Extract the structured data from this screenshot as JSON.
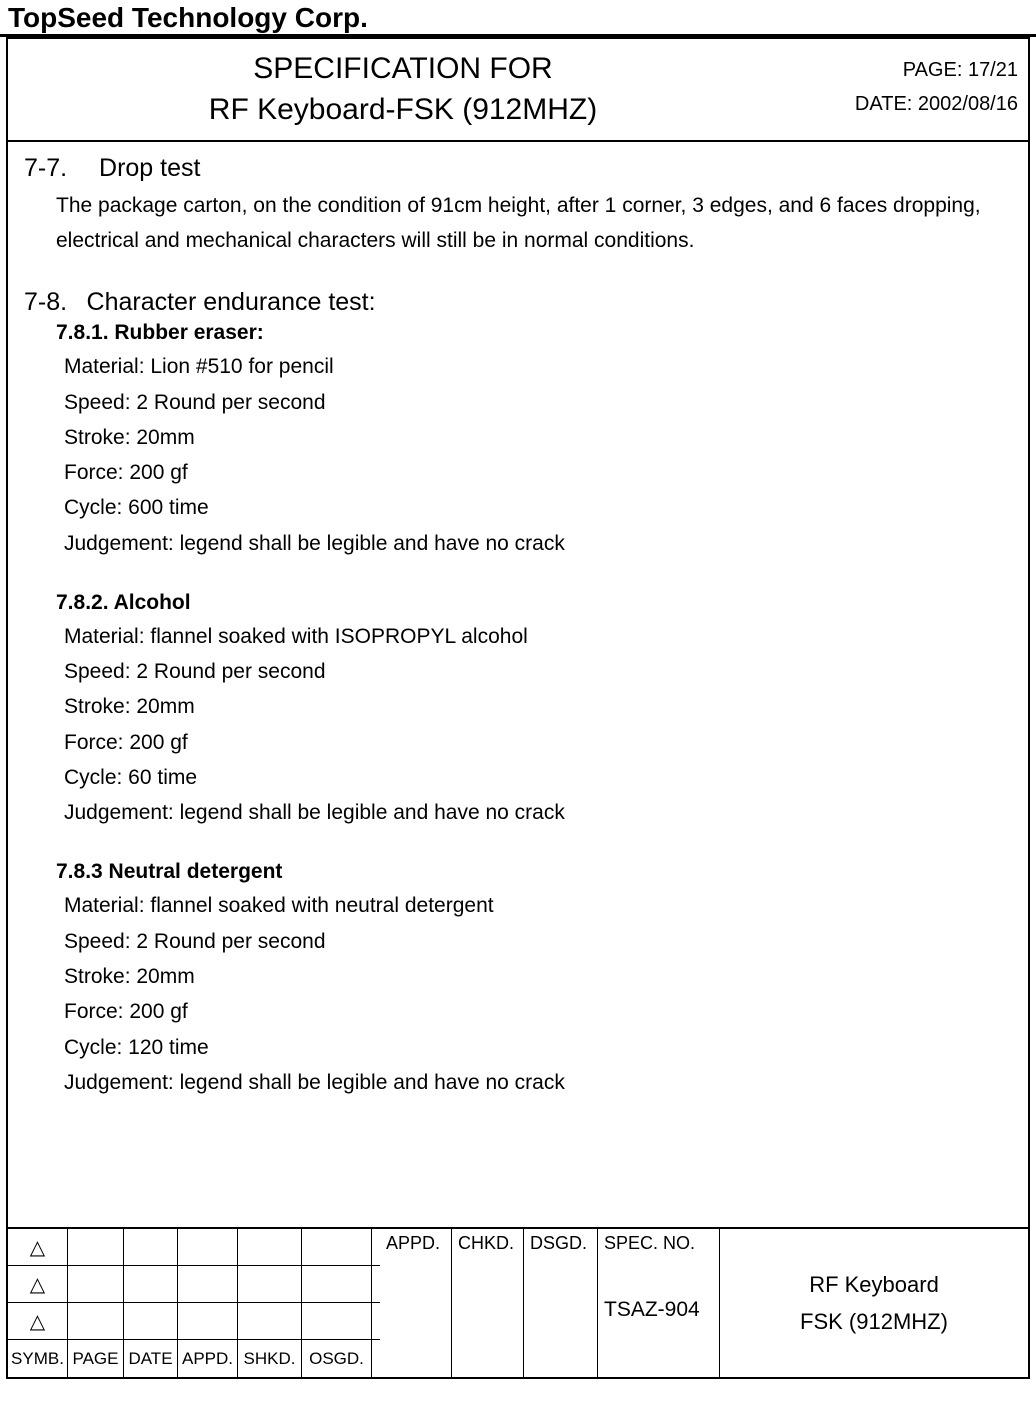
{
  "company": "TopSeed Technology Corp.",
  "header": {
    "title_line1": "SPECIFICATION FOR",
    "title_line2": "RF Keyboard-FSK (912MHZ)",
    "page_label": "PAGE: 17/21",
    "date_label": "DATE: 2002/08/16"
  },
  "sections": {
    "s77": {
      "heading": "7-7.  Drop test",
      "body": "The package carton, on the condition of 91cm height, after 1 corner, 3 edges, and 6 faces dropping, electrical and mechanical characters will still be in normal conditions."
    },
    "s78": {
      "heading": "7-8.  Character endurance test:",
      "sub1": {
        "title": "7.8.1. Rubber eraser:",
        "material": "Material: Lion #510 for pencil",
        "speed": "Speed: 2 Round per second",
        "stroke": "Stroke: 20mm",
        "force": "Force: 200 gf",
        "cycle": "Cycle: 600 time",
        "judgement": "Judgement: legend shall be legible and have no crack"
      },
      "sub2": {
        "title": "7.8.2. Alcohol",
        "material": "Material: flannel soaked with ISOPROPYL alcohol",
        "speed": "Speed: 2 Round per second",
        "stroke": "Stroke: 20mm",
        "force": "Force: 200 gf",
        "cycle": "Cycle: 60 time",
        "judgement": "Judgement: legend shall be legible and have no crack"
      },
      "sub3": {
        "title": "7.8.3 Neutral detergent",
        "material": "Material: flannel soaked with neutral detergent",
        "speed": "Speed: 2 Round per second",
        "stroke": "Stroke: 20mm",
        "force": "Force: 200 gf",
        "cycle": "Cycle: 120 time",
        "judgement": "Judgement: legend shall be legible and have no crack"
      }
    }
  },
  "footer": {
    "triangle": "△",
    "labels": {
      "symb": "SYMB.",
      "page": "PAGE",
      "date": "DATE",
      "appd": "APPD.",
      "shkd": "SHKD.",
      "osgd": "OSGD.",
      "appd2": "APPD.",
      "chkd": "CHKD.",
      "dsgd": "DSGD.",
      "specno": "SPEC. NO."
    },
    "spec_no_value": "TSAZ-904",
    "product_line1": "RF Keyboard",
    "product_line2": "FSK (912MHZ)"
  }
}
